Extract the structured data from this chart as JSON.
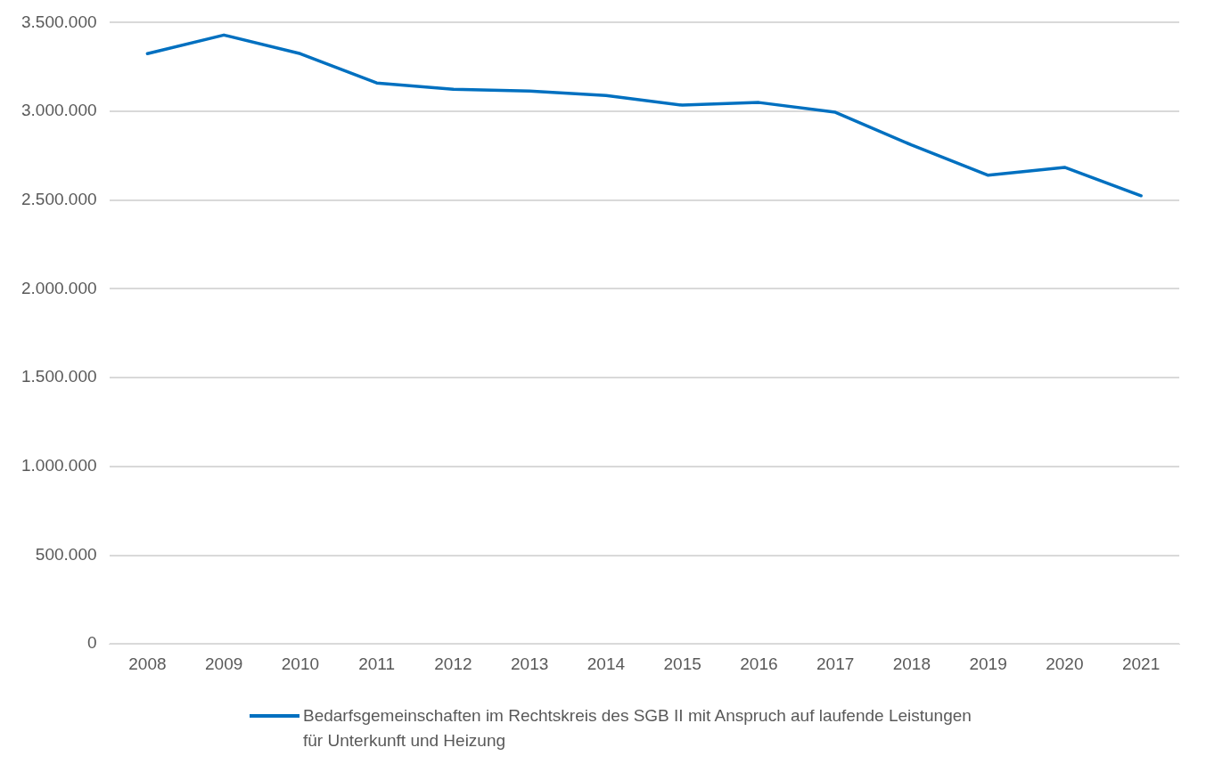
{
  "chart_data": {
    "type": "line",
    "categories": [
      "2008",
      "2009",
      "2010",
      "2011",
      "2012",
      "2013",
      "2014",
      "2015",
      "2016",
      "2017",
      "2018",
      "2019",
      "2020",
      "2021"
    ],
    "series": [
      {
        "name": "Bedarfsgemeinschaften im Rechtskreis des SGB II mit Anspruch auf laufende Leistungen für Unterkunft und Heizung",
        "color": "#0070c0",
        "values": [
          3325000,
          3430000,
          3325000,
          3160000,
          3125000,
          3115000,
          3090000,
          3035000,
          3050000,
          2995000,
          2810000,
          2640000,
          2685000,
          2525000
        ]
      }
    ],
    "ylim": [
      0,
      3500000
    ],
    "yticks": [
      {
        "value": 0,
        "label": "0"
      },
      {
        "value": 500000,
        "label": "500.000"
      },
      {
        "value": 1000000,
        "label": "1.000.000"
      },
      {
        "value": 1500000,
        "label": "1.500.000"
      },
      {
        "value": 2000000,
        "label": "2.000.000"
      },
      {
        "value": 2500000,
        "label": "2.500.000"
      },
      {
        "value": 3000000,
        "label": "3.000.000"
      },
      {
        "value": 3500000,
        "label": "3.500.000"
      }
    ],
    "grid": "y",
    "legend": "bottom",
    "marker": "none",
    "line_style": "solid"
  }
}
